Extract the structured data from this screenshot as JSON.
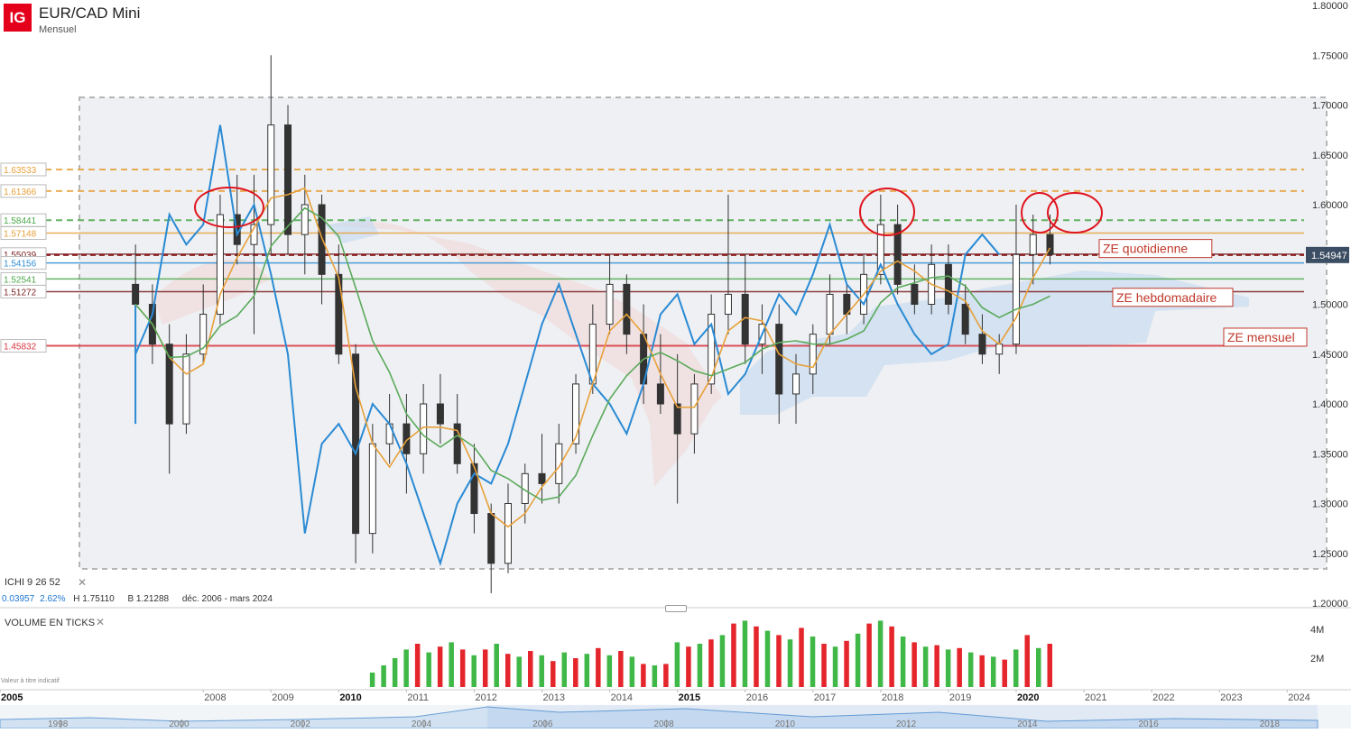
{
  "header": {
    "logo_text": "IG",
    "title": "EUR/CAD Mini",
    "subtitle": "Mensuel"
  },
  "indicator": {
    "ichimoku_label": "ICHI  9  26  52",
    "close_icon": "close-icon",
    "change": "0.03957",
    "change_pct": "2.62%",
    "high": "H 1.75110",
    "low": "B 1.21288",
    "period": "déc. 2006 - mars 2024"
  },
  "volume_panel": {
    "label": "VOLUME EN TICKS",
    "close_icon": "close-icon",
    "disclaimer": "Valeur à titre indicatif",
    "ticks": [
      "4M",
      "2M"
    ]
  },
  "price_axis": {
    "ticks": [
      "1.80000",
      "1.75000",
      "1.70000",
      "1.65000",
      "1.60000",
      "1.55000",
      "1.50000",
      "1.45000",
      "1.40000",
      "1.35000",
      "1.30000",
      "1.25000",
      "1.20000"
    ],
    "current_price": "1.54947"
  },
  "time_axis": {
    "labels": [
      {
        "year": "2005",
        "bold": true
      },
      {
        "year": "2008",
        "bold": false
      },
      {
        "year": "2009",
        "bold": false
      },
      {
        "year": "2010",
        "bold": true
      },
      {
        "year": "2011",
        "bold": false
      },
      {
        "year": "2012",
        "bold": false
      },
      {
        "year": "2013",
        "bold": false
      },
      {
        "year": "2014",
        "bold": false
      },
      {
        "year": "2015",
        "bold": true
      },
      {
        "year": "2016",
        "bold": false
      },
      {
        "year": "2017",
        "bold": false
      },
      {
        "year": "2018",
        "bold": false
      },
      {
        "year": "2019",
        "bold": false
      },
      {
        "year": "2020",
        "bold": true
      },
      {
        "year": "2021",
        "bold": false
      },
      {
        "year": "2022",
        "bold": false
      },
      {
        "year": "2023",
        "bold": false
      },
      {
        "year": "2024",
        "bold": false
      }
    ],
    "navigator_labels": [
      "1998",
      "2000",
      "2002",
      "2004",
      "2006",
      "2008",
      "2010",
      "2012",
      "2014",
      "2016",
      "2018"
    ]
  },
  "left_price_tags": [
    {
      "text": "1.63533",
      "color": "#e8a03a"
    },
    {
      "text": "1.61366",
      "color": "#e8a03a"
    },
    {
      "text": "1.58441",
      "color": "#4aa84a"
    },
    {
      "text": "1.57148",
      "color": "#e8a03a"
    },
    {
      "text": "1.55039",
      "color": "#7a1f1f"
    },
    {
      "text": "1.54156",
      "color": "#2f8fd6"
    },
    {
      "text": "1.52541",
      "color": "#4aa84a"
    },
    {
      "text": "1.51272",
      "color": "#7a1f1f"
    },
    {
      "text": "1.45832",
      "color": "#d9363e"
    }
  ],
  "annotations": [
    {
      "text": "ZE quotidienne",
      "color": "#c0392b"
    },
    {
      "text": "ZE hebdomadaire",
      "color": "#c0392b"
    },
    {
      "text": "ZE mensuel",
      "color": "#c0392b"
    }
  ],
  "colors": {
    "bull": "#ffffff",
    "bear": "#333333",
    "vol_up": "#3fb847",
    "vol_down": "#e4252b",
    "tenkan": "#2a8ad4",
    "kijun": "#e8a03a",
    "chikou": "#5caa5c",
    "accent": "#e4001b"
  },
  "chart_data": {
    "type": "candlestick",
    "instrument": "EUR/CAD Mini",
    "timeframe": "Mensuel",
    "ylim": [
      1.2,
      1.8
    ],
    "xlim": [
      "2005-01",
      "2024-03"
    ],
    "horizontal_levels": [
      1.63533,
      1.61366,
      1.58441,
      1.57148,
      1.55039,
      1.54156,
      1.52541,
      1.51272,
      1.45832
    ],
    "candles": [
      {
        "t": "2007-01",
        "o": 1.52,
        "h": 1.56,
        "l": 1.48,
        "c": 1.5
      },
      {
        "t": "2007-04",
        "o": 1.5,
        "h": 1.52,
        "l": 1.44,
        "c": 1.46
      },
      {
        "t": "2007-07",
        "o": 1.46,
        "h": 1.48,
        "l": 1.33,
        "c": 1.38
      },
      {
        "t": "2007-10",
        "o": 1.38,
        "h": 1.47,
        "l": 1.37,
        "c": 1.45
      },
      {
        "t": "2008-01",
        "o": 1.45,
        "h": 1.52,
        "l": 1.44,
        "c": 1.49
      },
      {
        "t": "2008-04",
        "o": 1.49,
        "h": 1.61,
        "l": 1.48,
        "c": 1.59
      },
      {
        "t": "2008-07",
        "o": 1.59,
        "h": 1.63,
        "l": 1.54,
        "c": 1.56
      },
      {
        "t": "2008-10",
        "o": 1.56,
        "h": 1.63,
        "l": 1.47,
        "c": 1.58
      },
      {
        "t": "2009-01",
        "o": 1.58,
        "h": 1.75,
        "l": 1.55,
        "c": 1.68
      },
      {
        "t": "2009-04",
        "o": 1.68,
        "h": 1.7,
        "l": 1.55,
        "c": 1.57
      },
      {
        "t": "2009-07",
        "o": 1.57,
        "h": 1.63,
        "l": 1.53,
        "c": 1.6
      },
      {
        "t": "2009-10",
        "o": 1.6,
        "h": 1.61,
        "l": 1.5,
        "c": 1.53
      },
      {
        "t": "2010-01",
        "o": 1.53,
        "h": 1.56,
        "l": 1.44,
        "c": 1.45
      },
      {
        "t": "2010-04",
        "o": 1.45,
        "h": 1.46,
        "l": 1.24,
        "c": 1.27
      },
      {
        "t": "2010-07",
        "o": 1.27,
        "h": 1.38,
        "l": 1.25,
        "c": 1.36
      },
      {
        "t": "2010-10",
        "o": 1.36,
        "h": 1.41,
        "l": 1.34,
        "c": 1.38
      },
      {
        "t": "2011-01",
        "o": 1.38,
        "h": 1.41,
        "l": 1.31,
        "c": 1.35
      },
      {
        "t": "2011-04",
        "o": 1.35,
        "h": 1.42,
        "l": 1.33,
        "c": 1.4
      },
      {
        "t": "2011-07",
        "o": 1.4,
        "h": 1.43,
        "l": 1.36,
        "c": 1.38
      },
      {
        "t": "2011-10",
        "o": 1.38,
        "h": 1.41,
        "l": 1.33,
        "c": 1.34
      },
      {
        "t": "2012-01",
        "o": 1.34,
        "h": 1.36,
        "l": 1.27,
        "c": 1.29
      },
      {
        "t": "2012-04",
        "o": 1.29,
        "h": 1.3,
        "l": 1.21,
        "c": 1.24
      },
      {
        "t": "2012-07",
        "o": 1.24,
        "h": 1.32,
        "l": 1.23,
        "c": 1.3
      },
      {
        "t": "2012-10",
        "o": 1.3,
        "h": 1.34,
        "l": 1.28,
        "c": 1.33
      },
      {
        "t": "2013-01",
        "o": 1.33,
        "h": 1.37,
        "l": 1.3,
        "c": 1.32
      },
      {
        "t": "2013-04",
        "o": 1.32,
        "h": 1.38,
        "l": 1.3,
        "c": 1.36
      },
      {
        "t": "2013-07",
        "o": 1.36,
        "h": 1.43,
        "l": 1.35,
        "c": 1.42
      },
      {
        "t": "2013-10",
        "o": 1.42,
        "h": 1.5,
        "l": 1.41,
        "c": 1.48
      },
      {
        "t": "2014-01",
        "o": 1.48,
        "h": 1.55,
        "l": 1.47,
        "c": 1.52
      },
      {
        "t": "2014-04",
        "o": 1.52,
        "h": 1.53,
        "l": 1.45,
        "c": 1.47
      },
      {
        "t": "2014-07",
        "o": 1.47,
        "h": 1.5,
        "l": 1.4,
        "c": 1.42
      },
      {
        "t": "2014-10",
        "o": 1.42,
        "h": 1.47,
        "l": 1.39,
        "c": 1.4
      },
      {
        "t": "2015-01",
        "o": 1.4,
        "h": 1.45,
        "l": 1.3,
        "c": 1.37
      },
      {
        "t": "2015-04",
        "o": 1.37,
        "h": 1.43,
        "l": 1.35,
        "c": 1.42
      },
      {
        "t": "2015-07",
        "o": 1.42,
        "h": 1.51,
        "l": 1.41,
        "c": 1.49
      },
      {
        "t": "2015-10",
        "o": 1.49,
        "h": 1.61,
        "l": 1.47,
        "c": 1.51
      },
      {
        "t": "2016-01",
        "o": 1.51,
        "h": 1.55,
        "l": 1.44,
        "c": 1.46
      },
      {
        "t": "2016-04",
        "o": 1.46,
        "h": 1.5,
        "l": 1.43,
        "c": 1.48
      },
      {
        "t": "2016-07",
        "o": 1.48,
        "h": 1.5,
        "l": 1.38,
        "c": 1.41
      },
      {
        "t": "2016-10",
        "o": 1.41,
        "h": 1.45,
        "l": 1.38,
        "c": 1.43
      },
      {
        "t": "2017-01",
        "o": 1.43,
        "h": 1.48,
        "l": 1.41,
        "c": 1.47
      },
      {
        "t": "2017-04",
        "o": 1.47,
        "h": 1.53,
        "l": 1.46,
        "c": 1.51
      },
      {
        "t": "2017-07",
        "o": 1.51,
        "h": 1.52,
        "l": 1.47,
        "c": 1.49
      },
      {
        "t": "2017-10",
        "o": 1.49,
        "h": 1.55,
        "l": 1.48,
        "c": 1.53
      },
      {
        "t": "2018-01",
        "o": 1.53,
        "h": 1.61,
        "l": 1.52,
        "c": 1.58
      },
      {
        "t": "2018-04",
        "o": 1.58,
        "h": 1.6,
        "l": 1.51,
        "c": 1.52
      },
      {
        "t": "2018-07",
        "o": 1.52,
        "h": 1.54,
        "l": 1.49,
        "c": 1.5
      },
      {
        "t": "2018-10",
        "o": 1.5,
        "h": 1.56,
        "l": 1.49,
        "c": 1.54
      },
      {
        "t": "2019-01",
        "o": 1.54,
        "h": 1.56,
        "l": 1.49,
        "c": 1.5
      },
      {
        "t": "2019-04",
        "o": 1.5,
        "h": 1.52,
        "l": 1.46,
        "c": 1.47
      },
      {
        "t": "2019-07",
        "o": 1.47,
        "h": 1.49,
        "l": 1.44,
        "c": 1.45
      },
      {
        "t": "2019-10",
        "o": 1.45,
        "h": 1.47,
        "l": 1.43,
        "c": 1.46
      },
      {
        "t": "2020-01",
        "o": 1.46,
        "h": 1.6,
        "l": 1.45,
        "c": 1.55
      },
      {
        "t": "2020-04",
        "o": 1.55,
        "h": 1.59,
        "l": 1.52,
        "c": 1.57
      },
      {
        "t": "2020-07",
        "o": 1.57,
        "h": 1.59,
        "l": 1.54,
        "c": 1.55
      }
    ],
    "volume": [
      {
        "t": "2010-07",
        "v": 1.0,
        "up": true
      },
      {
        "t": "2010-09",
        "v": 1.5,
        "up": true
      },
      {
        "t": "2010-11",
        "v": 2.0,
        "up": true
      },
      {
        "t": "2011-01",
        "v": 2.6,
        "up": true
      },
      {
        "t": "2011-03",
        "v": 3.0,
        "up": false
      },
      {
        "t": "2011-05",
        "v": 2.4,
        "up": true
      },
      {
        "t": "2011-07",
        "v": 2.8,
        "up": false
      },
      {
        "t": "2011-09",
        "v": 3.1,
        "up": true
      },
      {
        "t": "2011-11",
        "v": 2.6,
        "up": false
      },
      {
        "t": "2012-01",
        "v": 2.2,
        "up": true
      },
      {
        "t": "2012-03",
        "v": 2.6,
        "up": false
      },
      {
        "t": "2012-05",
        "v": 3.0,
        "up": true
      },
      {
        "t": "2012-07",
        "v": 2.3,
        "up": false
      },
      {
        "t": "2012-09",
        "v": 2.1,
        "up": true
      },
      {
        "t": "2012-11",
        "v": 2.5,
        "up": false
      },
      {
        "t": "2013-01",
        "v": 2.2,
        "up": true
      },
      {
        "t": "2013-03",
        "v": 1.8,
        "up": false
      },
      {
        "t": "2013-05",
        "v": 2.4,
        "up": true
      },
      {
        "t": "2013-07",
        "v": 2.0,
        "up": false
      },
      {
        "t": "2013-09",
        "v": 2.3,
        "up": true
      },
      {
        "t": "2013-11",
        "v": 2.7,
        "up": false
      },
      {
        "t": "2014-01",
        "v": 2.2,
        "up": true
      },
      {
        "t": "2014-03",
        "v": 2.5,
        "up": false
      },
      {
        "t": "2014-05",
        "v": 2.1,
        "up": true
      },
      {
        "t": "2014-07",
        "v": 1.6,
        "up": false
      },
      {
        "t": "2014-09",
        "v": 1.5,
        "up": true
      },
      {
        "t": "2014-11",
        "v": 1.6,
        "up": false
      },
      {
        "t": "2015-01",
        "v": 3.1,
        "up": true
      },
      {
        "t": "2015-03",
        "v": 2.8,
        "up": false
      },
      {
        "t": "2015-05",
        "v": 3.0,
        "up": true
      },
      {
        "t": "2015-07",
        "v": 3.3,
        "up": false
      },
      {
        "t": "2015-09",
        "v": 3.6,
        "up": true
      },
      {
        "t": "2015-11",
        "v": 4.4,
        "up": false
      },
      {
        "t": "2016-01",
        "v": 4.6,
        "up": true
      },
      {
        "t": "2016-03",
        "v": 4.2,
        "up": false
      },
      {
        "t": "2016-05",
        "v": 3.9,
        "up": true
      },
      {
        "t": "2016-07",
        "v": 3.6,
        "up": false
      },
      {
        "t": "2016-09",
        "v": 3.3,
        "up": true
      },
      {
        "t": "2016-11",
        "v": 4.1,
        "up": false
      },
      {
        "t": "2017-01",
        "v": 3.5,
        "up": true
      },
      {
        "t": "2017-03",
        "v": 3.0,
        "up": false
      },
      {
        "t": "2017-05",
        "v": 2.8,
        "up": true
      },
      {
        "t": "2017-07",
        "v": 3.2,
        "up": false
      },
      {
        "t": "2017-09",
        "v": 3.7,
        "up": true
      },
      {
        "t": "2017-11",
        "v": 4.4,
        "up": false
      },
      {
        "t": "2018-01",
        "v": 4.6,
        "up": true
      },
      {
        "t": "2018-03",
        "v": 4.2,
        "up": false
      },
      {
        "t": "2018-05",
        "v": 3.5,
        "up": true
      },
      {
        "t": "2018-07",
        "v": 3.1,
        "up": false
      },
      {
        "t": "2018-09",
        "v": 2.8,
        "up": true
      },
      {
        "t": "2018-11",
        "v": 2.9,
        "up": false
      },
      {
        "t": "2019-01",
        "v": 2.6,
        "up": true
      },
      {
        "t": "2019-03",
        "v": 2.7,
        "up": false
      },
      {
        "t": "2019-05",
        "v": 2.4,
        "up": true
      },
      {
        "t": "2019-07",
        "v": 2.2,
        "up": false
      },
      {
        "t": "2019-09",
        "v": 2.1,
        "up": true
      },
      {
        "t": "2019-11",
        "v": 1.9,
        "up": false
      },
      {
        "t": "2020-01",
        "v": 2.6,
        "up": true
      },
      {
        "t": "2020-03",
        "v": 3.6,
        "up": false
      },
      {
        "t": "2020-05",
        "v": 2.7,
        "up": true
      },
      {
        "t": "2020-07",
        "v": 3.0,
        "up": false
      }
    ],
    "volume_max": 5
  }
}
